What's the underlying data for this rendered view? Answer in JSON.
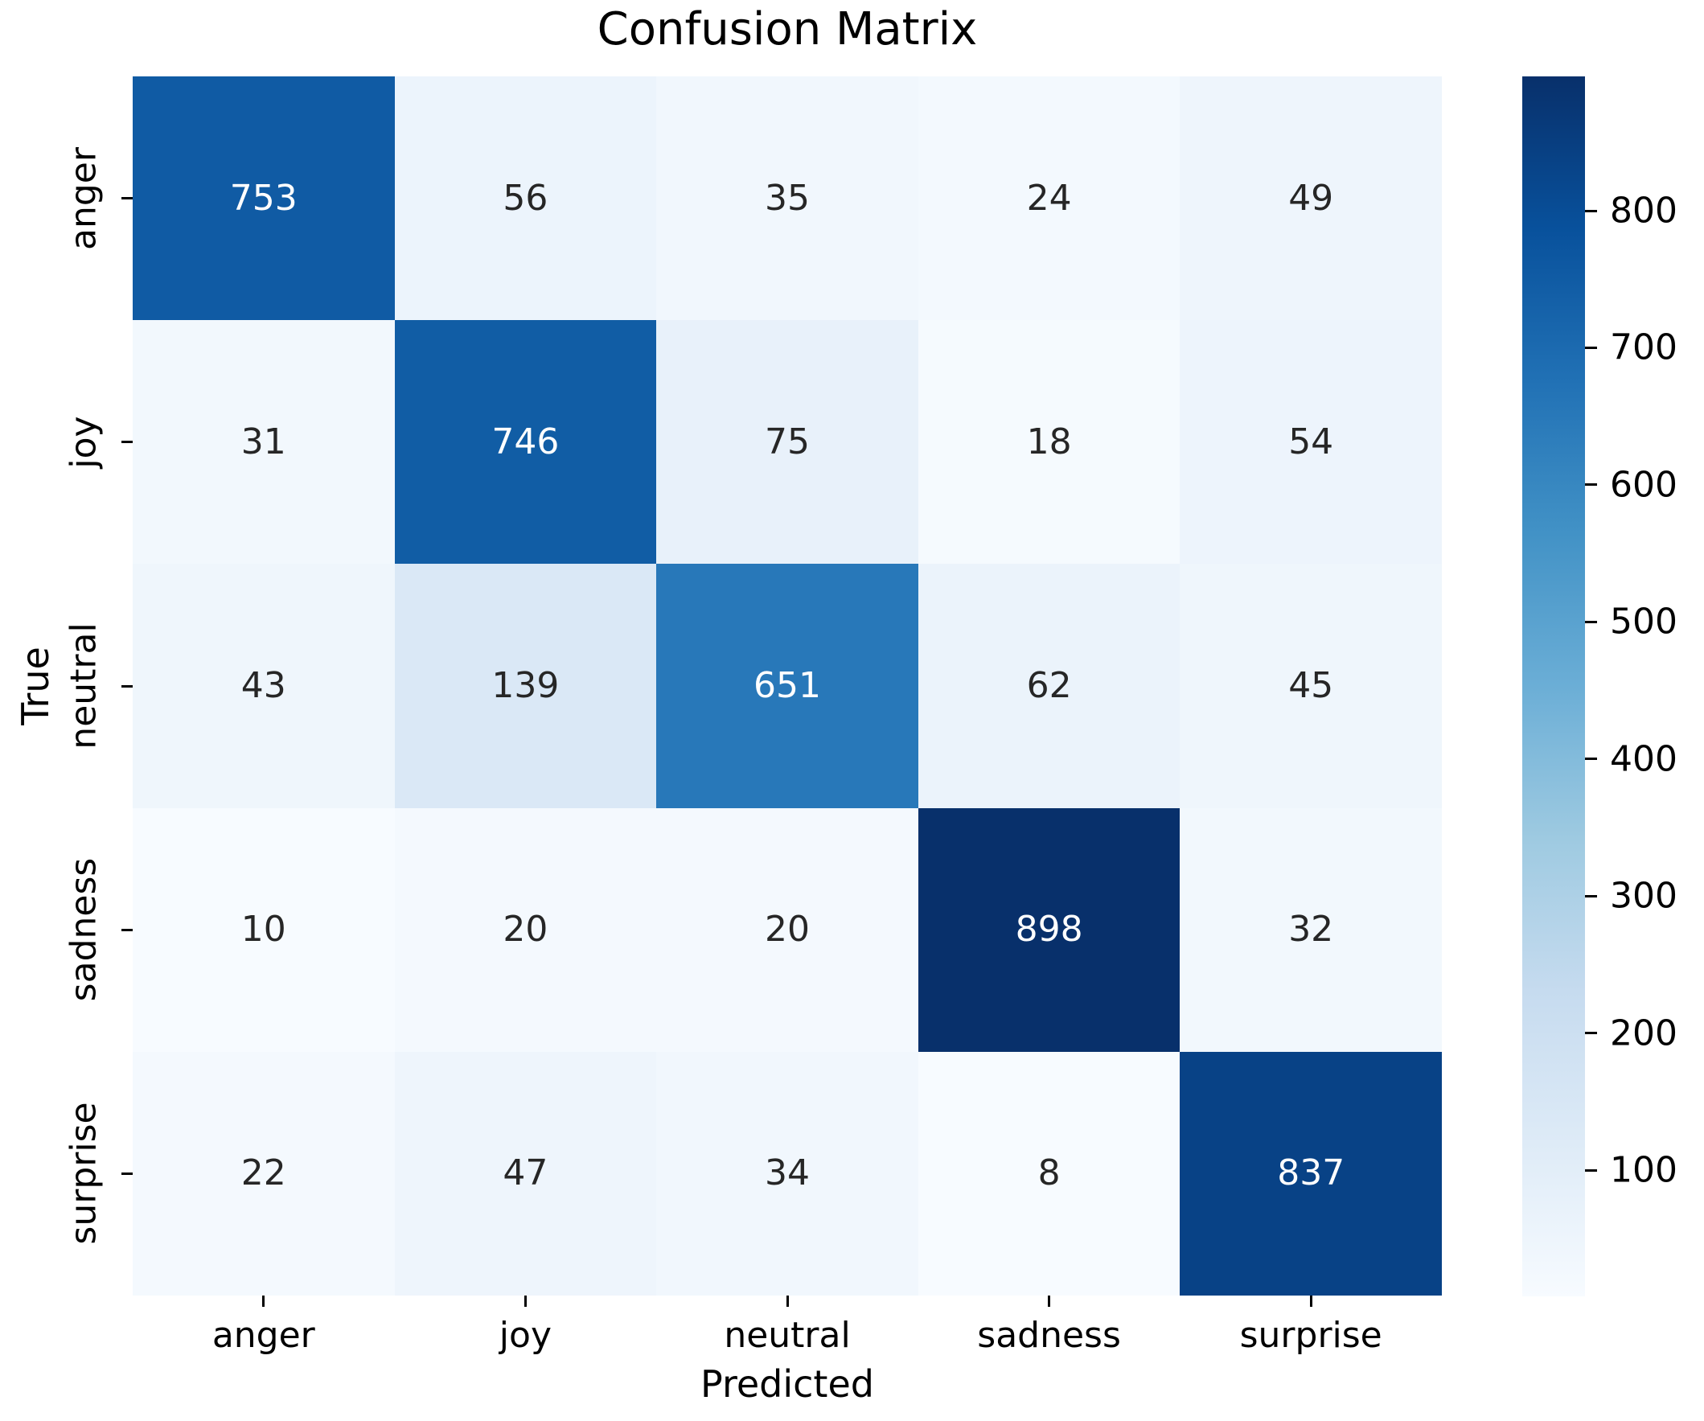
{
  "chart_data": {
    "type": "heatmap",
    "title": "Confusion Matrix",
    "xlabel": "Predicted",
    "ylabel": "True",
    "x_categories": [
      "anger",
      "joy",
      "neutral",
      "sadness",
      "surprise"
    ],
    "y_categories": [
      "anger",
      "joy",
      "neutral",
      "sadness",
      "surprise"
    ],
    "matrix": [
      [
        753,
        56,
        35,
        24,
        49
      ],
      [
        31,
        746,
        75,
        18,
        54
      ],
      [
        43,
        139,
        651,
        62,
        45
      ],
      [
        10,
        20,
        20,
        898,
        32
      ],
      [
        22,
        47,
        34,
        8,
        837
      ]
    ],
    "colormap": "Blues",
    "vmin": 8,
    "vmax": 898,
    "colorbar_ticks": [
      100,
      200,
      300,
      400,
      500,
      600,
      700,
      800
    ],
    "legend_position": "right-colorbar",
    "grid": false
  },
  "colors": {
    "cmap_low": "#f7fbff",
    "cmap_high": "#08306b",
    "annot_dark": "#262626",
    "annot_light": "#ffffff",
    "tick_color": "#000000",
    "background": "#ffffff"
  }
}
